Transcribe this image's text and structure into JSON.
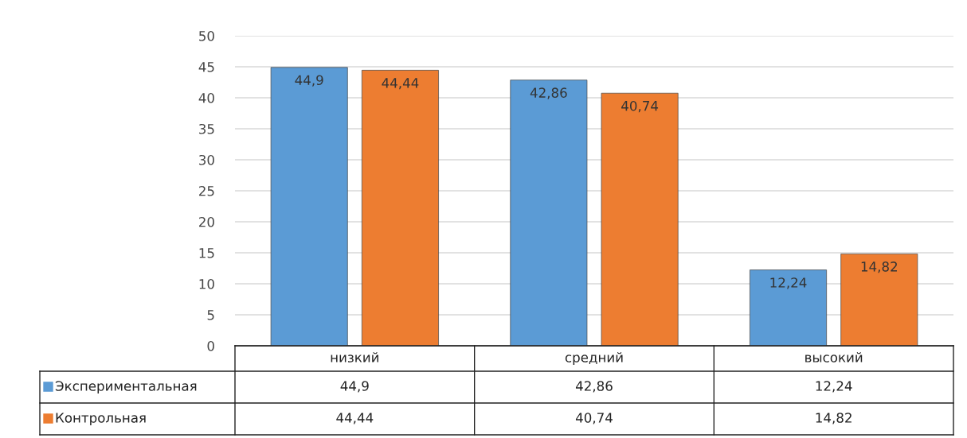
{
  "chart_data": {
    "type": "bar",
    "categories": [
      "низкий",
      "средний",
      "высокий"
    ],
    "series": [
      {
        "name": "Экспериментальная",
        "color": "#5b9bd5",
        "values": [
          44.9,
          42.86,
          12.24
        ],
        "value_labels": [
          "44,9",
          "42,86",
          "12,24"
        ]
      },
      {
        "name": "Контрольная",
        "color": "#ed7d31",
        "values": [
          44.44,
          40.74,
          14.82
        ],
        "value_labels": [
          "44,44",
          "40,74",
          "14,82"
        ]
      }
    ],
    "ylim": [
      0,
      50
    ],
    "yticks": [
      0,
      5,
      10,
      15,
      20,
      25,
      30,
      35,
      40,
      45,
      50
    ],
    "grid": "y",
    "legend": "bottom"
  }
}
